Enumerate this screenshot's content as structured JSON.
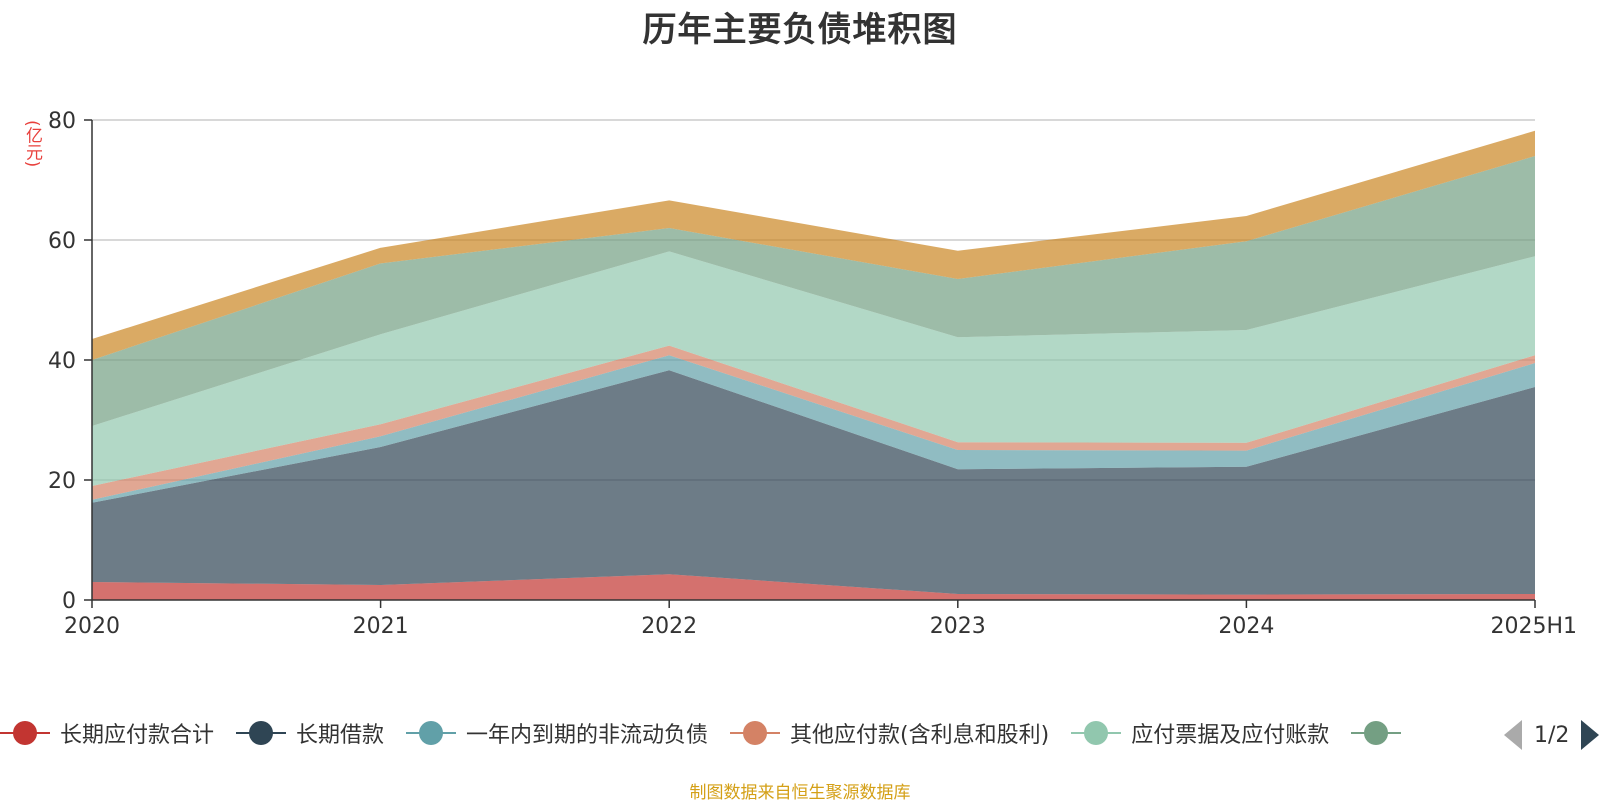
{
  "chart_data": {
    "type": "area",
    "stacked": true,
    "title": "历年主要负债堆积图",
    "y_unit_label": "(亿元)",
    "categories": [
      "2020",
      "2021",
      "2022",
      "2023",
      "2024",
      "2025H1"
    ],
    "ylim": [
      0,
      80
    ],
    "yticks": [
      0,
      20,
      40,
      60,
      80
    ],
    "grid": true,
    "legend_position": "bottom",
    "series": [
      {
        "name": "长期应付款合计",
        "color": "#c23531",
        "values": [
          3.0,
          2.5,
          4.3,
          1.0,
          0.9,
          1.0
        ]
      },
      {
        "name": "长期借款",
        "color": "#2f4554",
        "values": [
          13.2,
          23.0,
          34.0,
          20.8,
          21.3,
          34.5
        ]
      },
      {
        "name": "一年内到期的非流动负债",
        "color": "#61a0a8",
        "values": [
          0.5,
          1.8,
          2.5,
          3.2,
          2.7,
          4.0
        ]
      },
      {
        "name": "其他应付款(含利息和股利)",
        "color": "#d48265",
        "values": [
          2.3,
          2.0,
          1.6,
          1.3,
          1.3,
          1.3
        ]
      },
      {
        "name": "应付票据及应付账款",
        "color": "#91c7ae",
        "values": [
          10.0,
          15.0,
          15.7,
          17.5,
          18.8,
          16.5
        ]
      },
      {
        "name": "",
        "color": "#749f83",
        "values": [
          11.0,
          11.8,
          3.9,
          9.7,
          14.8,
          16.7
        ]
      },
      {
        "name": "",
        "color": "#ca8622",
        "values": [
          3.5,
          2.6,
          4.6,
          4.7,
          4.2,
          4.2
        ]
      }
    ]
  },
  "legend": {
    "items": [
      {
        "label": "长期应付款合计",
        "color": "#c23531"
      },
      {
        "label": "长期借款",
        "color": "#2f4554"
      },
      {
        "label": "一年内到期的非流动负债",
        "color": "#61a0a8"
      },
      {
        "label": "其他应付款(含利息和股利)",
        "color": "#d48265"
      },
      {
        "label": "应付票据及应付账款",
        "color": "#91c7ae"
      },
      {
        "label": "",
        "color": "#749f83"
      }
    ],
    "page_indicator": "1/2"
  },
  "source_note": "制图数据来自恒生聚源数据库"
}
